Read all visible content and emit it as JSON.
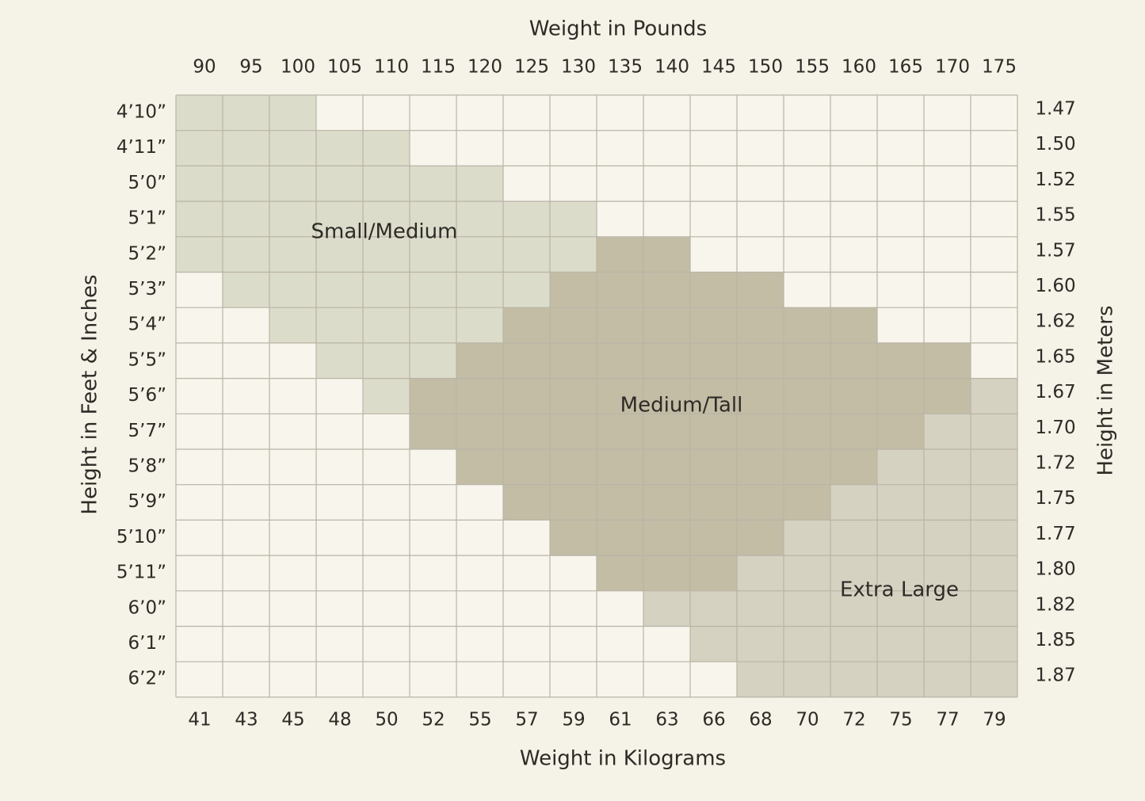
{
  "top_axis": {
    "title": "Weight in Pounds",
    "labels": [
      "90",
      "95",
      "100",
      "105",
      "110",
      "115",
      "120",
      "125",
      "130",
      "135",
      "140",
      "145",
      "150",
      "155",
      "160",
      "165",
      "170",
      "175"
    ]
  },
  "bottom_axis": {
    "title": "Weight in Kilograms",
    "labels": [
      "41",
      "43",
      "45",
      "48",
      "50",
      "52",
      "55",
      "57",
      "59",
      "61",
      "63",
      "66",
      "68",
      "70",
      "72",
      "75",
      "77",
      "79"
    ]
  },
  "left_axis": {
    "title": "Height in Feet & Inches",
    "labels": [
      "4’10”",
      "4’11”",
      "5’0”",
      "5’1”",
      "5’2”",
      "5’3”",
      "5’4”",
      "5’5”",
      "5’6”",
      "5’7”",
      "5’8”",
      "5’9”",
      "5’10”",
      "5’11”",
      "6’0”",
      "6’1”",
      "6’2”"
    ]
  },
  "right_axis": {
    "title": "Height in Meters",
    "labels": [
      "1.47",
      "1.50",
      "1.52",
      "1.55",
      "1.57",
      "1.60",
      "1.62",
      "1.65",
      "1.67",
      "1.70",
      "1.72",
      "1.75",
      "1.77",
      "1.80",
      "1.82",
      "1.85",
      "1.87"
    ]
  },
  "regions": [
    {
      "label": "Small/Medium"
    },
    {
      "label": "Medium/Tall"
    },
    {
      "label": "Extra Large"
    }
  ]
}
